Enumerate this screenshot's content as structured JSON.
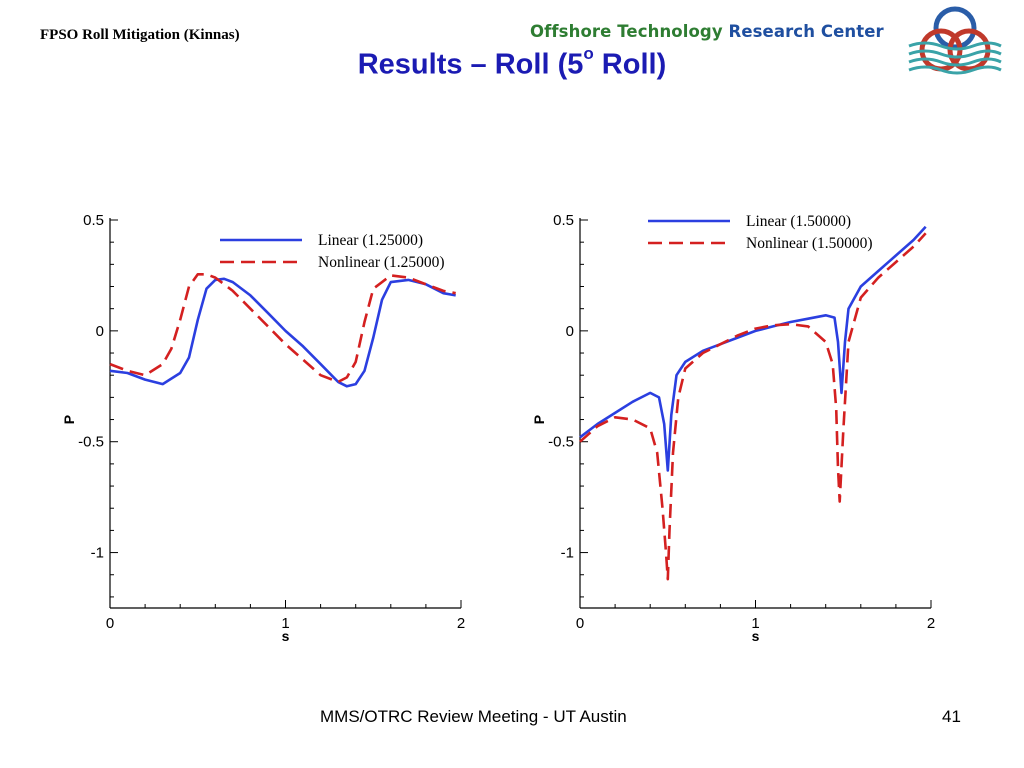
{
  "header": {
    "left_title": "FPSO Roll Mitigation (Kinnas)",
    "org_name_part1": "Offshore Technology ",
    "org_name_part2": "Research Center"
  },
  "slide": {
    "title_prefix": "Results – Roll (5",
    "title_superscript": "o",
    "title_suffix": " Roll)"
  },
  "colors": {
    "title": "#1b1bb3",
    "org_green": "#2e7d32",
    "org_blue": "#1f4fa0",
    "linear": "#2b3fe0",
    "nonlinear": "#d42020",
    "logo_blue": "#2a5da8",
    "logo_red": "#c0392b",
    "logo_teal": "#3aa3a8"
  },
  "footer": {
    "text": "MMS/OTRC Review Meeting - UT Austin",
    "page": "41"
  },
  "chart_data": [
    {
      "type": "line",
      "xlabel": "s",
      "ylabel": "P",
      "xlim": [
        0,
        2
      ],
      "ylim": [
        -1.25,
        0.5
      ],
      "xticks": [
        "0",
        "1",
        "2"
      ],
      "yticks": [
        "0.5",
        "0",
        "-0.5",
        "-1"
      ],
      "legend_placement": "top-right",
      "series": [
        {
          "name": "Linear (1.25000)",
          "style": "solid",
          "x": [
            0,
            0.1,
            0.2,
            0.3,
            0.4,
            0.45,
            0.5,
            0.55,
            0.6,
            0.65,
            0.7,
            0.8,
            0.9,
            1.0,
            1.1,
            1.2,
            1.3,
            1.35,
            1.4,
            1.45,
            1.5,
            1.55,
            1.6,
            1.7,
            1.8,
            1.9,
            1.97
          ],
          "y": [
            -0.18,
            -0.19,
            -0.22,
            -0.24,
            -0.19,
            -0.12,
            0.05,
            0.19,
            0.23,
            0.235,
            0.22,
            0.16,
            0.08,
            0.0,
            -0.07,
            -0.15,
            -0.23,
            -0.25,
            -0.24,
            -0.18,
            -0.03,
            0.14,
            0.22,
            0.23,
            0.21,
            0.17,
            0.16
          ]
        },
        {
          "name": "Nonlinear (1.25000)",
          "style": "dashed",
          "x": [
            0,
            0.1,
            0.2,
            0.3,
            0.35,
            0.4,
            0.45,
            0.5,
            0.55,
            0.6,
            0.7,
            0.8,
            0.9,
            1.0,
            1.1,
            1.2,
            1.3,
            1.35,
            1.4,
            1.45,
            1.5,
            1.6,
            1.7,
            1.8,
            1.9,
            1.97
          ],
          "y": [
            -0.15,
            -0.18,
            -0.2,
            -0.15,
            -0.08,
            0.05,
            0.2,
            0.255,
            0.255,
            0.24,
            0.18,
            0.1,
            0.02,
            -0.06,
            -0.13,
            -0.2,
            -0.23,
            -0.21,
            -0.14,
            0.04,
            0.19,
            0.25,
            0.24,
            0.21,
            0.18,
            0.17
          ]
        }
      ]
    },
    {
      "type": "line",
      "xlabel": "s",
      "ylabel": "P",
      "xlim": [
        0,
        2
      ],
      "ylim": [
        -1.25,
        0.5
      ],
      "xticks": [
        "0",
        "1",
        "2"
      ],
      "yticks": [
        "0.5",
        "0",
        "-0.5",
        "-1"
      ],
      "legend_placement": "top-right",
      "series": [
        {
          "name": "Linear (1.50000)",
          "style": "solid",
          "x": [
            0,
            0.1,
            0.2,
            0.3,
            0.4,
            0.45,
            0.48,
            0.5,
            0.52,
            0.55,
            0.6,
            0.7,
            0.8,
            0.9,
            1.0,
            1.1,
            1.2,
            1.3,
            1.4,
            1.45,
            1.47,
            1.49,
            1.51,
            1.53,
            1.6,
            1.7,
            1.8,
            1.9,
            1.97
          ],
          "y": [
            -0.48,
            -0.42,
            -0.37,
            -0.32,
            -0.28,
            -0.3,
            -0.42,
            -0.63,
            -0.38,
            -0.2,
            -0.14,
            -0.09,
            -0.06,
            -0.03,
            0.0,
            0.02,
            0.04,
            0.055,
            0.07,
            0.06,
            -0.05,
            -0.28,
            -0.05,
            0.1,
            0.2,
            0.27,
            0.34,
            0.41,
            0.47
          ]
        },
        {
          "name": "Nonlinear (1.50000)",
          "style": "dashed",
          "x": [
            0,
            0.1,
            0.2,
            0.3,
            0.4,
            0.44,
            0.47,
            0.49,
            0.5,
            0.51,
            0.53,
            0.56,
            0.6,
            0.7,
            0.8,
            0.9,
            1.0,
            1.1,
            1.2,
            1.3,
            1.4,
            1.44,
            1.46,
            1.47,
            1.48,
            1.5,
            1.53,
            1.6,
            1.7,
            1.8,
            1.9,
            1.97
          ],
          "y": [
            -0.5,
            -0.43,
            -0.39,
            -0.4,
            -0.44,
            -0.55,
            -0.8,
            -1.0,
            -1.12,
            -0.9,
            -0.55,
            -0.3,
            -0.17,
            -0.1,
            -0.06,
            -0.02,
            0.01,
            0.025,
            0.03,
            0.02,
            -0.05,
            -0.15,
            -0.35,
            -0.62,
            -0.77,
            -0.45,
            -0.05,
            0.15,
            0.24,
            0.31,
            0.38,
            0.44
          ]
        }
      ]
    }
  ]
}
